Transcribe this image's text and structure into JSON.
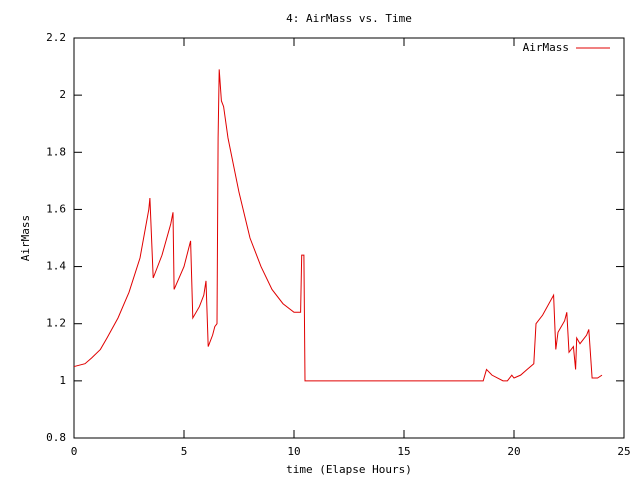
{
  "chart_data": {
    "type": "line",
    "title": "4: AirMass vs. Time",
    "x_label": "time (Elapse Hours)",
    "y_label": "AirMass",
    "x": [
      0,
      0.5,
      0.8,
      1.2,
      1.5,
      2.0,
      2.5,
      3.0,
      3.4,
      3.45,
      3.6,
      4.0,
      4.4,
      4.5,
      4.55,
      5.0,
      5.3,
      5.4,
      5.7,
      5.9,
      6.0,
      6.1,
      6.3,
      6.4,
      6.5,
      6.55,
      6.6,
      6.7,
      6.8,
      7.0,
      7.5,
      8.0,
      8.5,
      9.0,
      9.5,
      10.0,
      10.3,
      10.35,
      10.45,
      10.5,
      18.6,
      18.75,
      19.0,
      19.5,
      19.7,
      19.9,
      20.0,
      20.3,
      20.6,
      20.9,
      21.0,
      21.3,
      21.8,
      21.9,
      22.0,
      22.3,
      22.4,
      22.5,
      22.7,
      22.8,
      22.85,
      23.0,
      23.3,
      23.4,
      23.55,
      23.8,
      24.0
    ],
    "series": [
      {
        "name": "AirMass",
        "color": "#e00000",
        "values": [
          1.05,
          1.06,
          1.08,
          1.11,
          1.15,
          1.22,
          1.31,
          1.43,
          1.6,
          1.64,
          1.36,
          1.44,
          1.55,
          1.59,
          1.32,
          1.4,
          1.49,
          1.22,
          1.26,
          1.3,
          1.35,
          1.12,
          1.16,
          1.19,
          1.2,
          1.85,
          2.09,
          1.98,
          1.96,
          1.85,
          1.66,
          1.5,
          1.4,
          1.32,
          1.27,
          1.24,
          1.24,
          1.44,
          1.44,
          1.0,
          1.0,
          1.04,
          1.02,
          1.0,
          1.0,
          1.02,
          1.01,
          1.02,
          1.04,
          1.06,
          1.2,
          1.23,
          1.3,
          1.11,
          1.17,
          1.21,
          1.24,
          1.1,
          1.12,
          1.04,
          1.15,
          1.13,
          1.16,
          1.18,
          1.01,
          1.01,
          1.02
        ]
      }
    ],
    "xlim": [
      0,
      25
    ],
    "xticks": [
      0,
      5,
      10,
      15,
      20,
      25
    ],
    "ylim": [
      0.8,
      2.2
    ],
    "yticks": [
      0.8,
      1,
      1.2,
      1.4,
      1.6,
      1.8,
      2,
      2.2
    ],
    "legend": "top-right"
  }
}
